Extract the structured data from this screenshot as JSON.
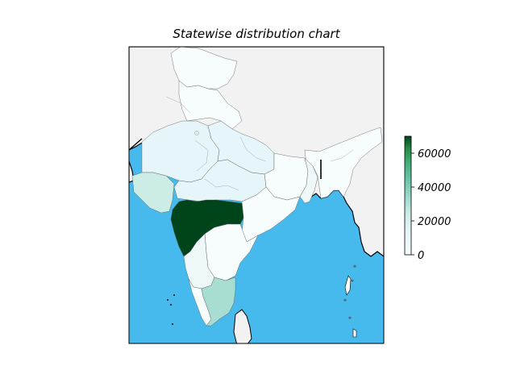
{
  "title": "Statewise distribution chart",
  "colors": {
    "ocean": "#46baed",
    "land": "#f2f2f2",
    "colormap_low": "#f7fcfd",
    "colormap_high": "#00441b"
  },
  "colorbar": {
    "min": 0,
    "max": 70000,
    "ticks": [
      {
        "value": 0,
        "label": "0"
      },
      {
        "value": 20000,
        "label": "20000"
      },
      {
        "value": 40000,
        "label": "40000"
      },
      {
        "value": 60000,
        "label": "60000"
      }
    ]
  },
  "chart_data": {
    "type": "choropleth",
    "title": "Statewise distribution chart",
    "colormap": "BuGn",
    "color_range": [
      0,
      70000
    ],
    "regions": [
      {
        "region": "Maharashtra",
        "value": 68000
      },
      {
        "region": "Tamil Nadu",
        "value": 22000
      },
      {
        "region": "Gujarat",
        "value": 12000
      },
      {
        "region": "Madhya Pradesh",
        "value": 3500
      },
      {
        "region": "Rajasthan",
        "value": 3000
      },
      {
        "region": "Uttar Pradesh",
        "value": 3000
      },
      {
        "region": "Delhi",
        "value": 5000
      },
      {
        "region": "Karnataka",
        "value": 1500
      },
      {
        "region": "Telangana",
        "value": 1500
      },
      {
        "region": "Andhra Pradesh",
        "value": 1500
      },
      {
        "region": "West Bengal",
        "value": 2000
      }
    ]
  }
}
